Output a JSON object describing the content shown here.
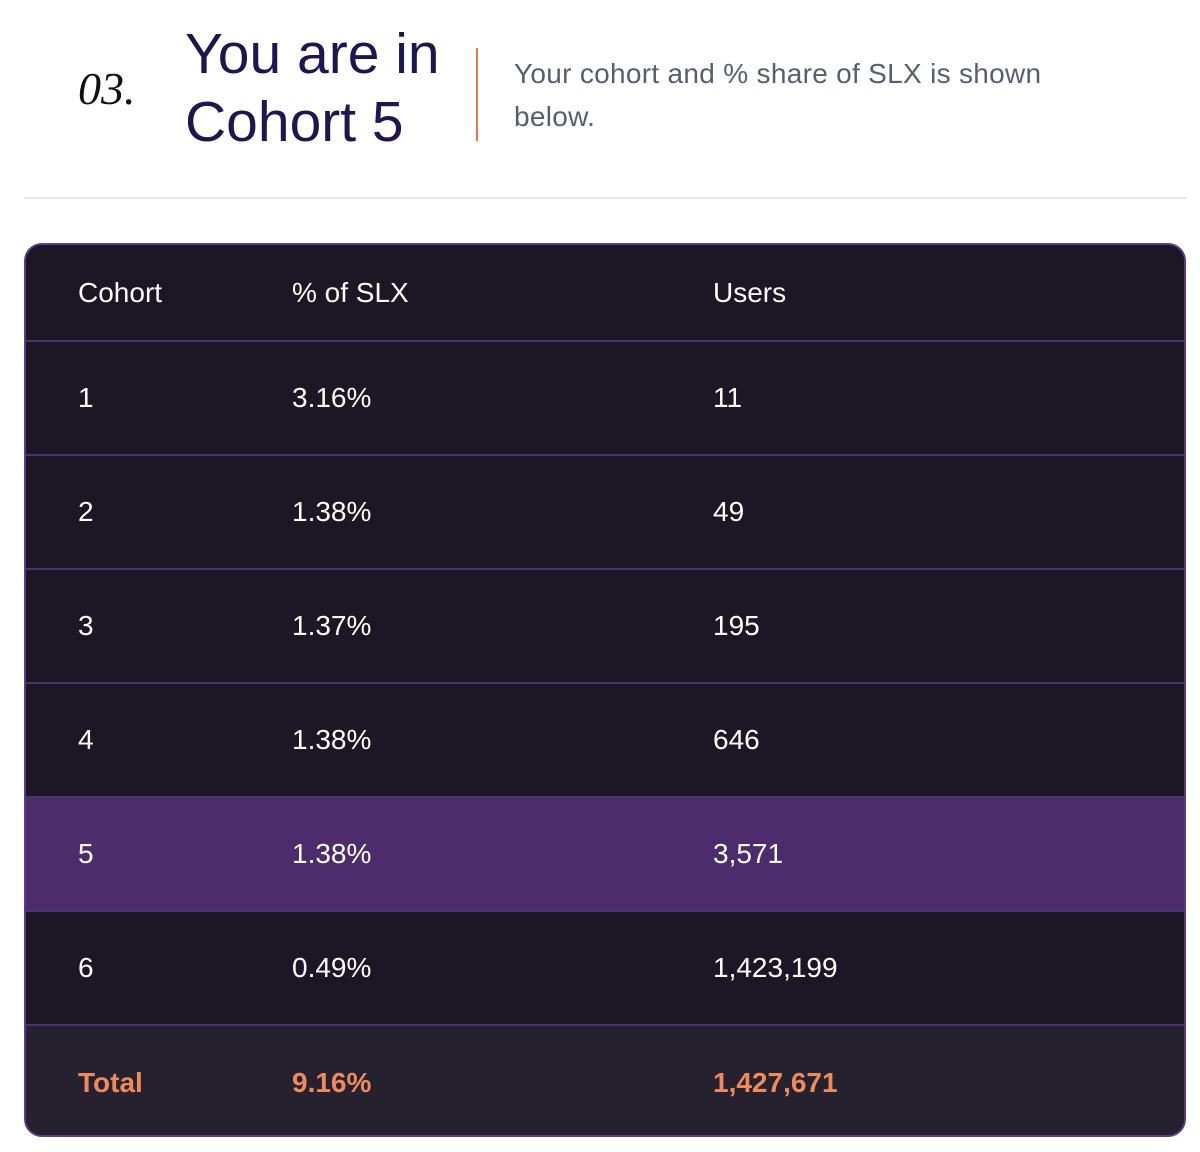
{
  "header": {
    "number": "03.",
    "title": "You are in Cohort 5",
    "description": "Your cohort and % share of SLX is shown below."
  },
  "table": {
    "columns": [
      "Cohort",
      "% of SLX",
      "Users"
    ],
    "rows": [
      [
        "1",
        "3.16%",
        "11"
      ],
      [
        "2",
        "1.38%",
        "49"
      ],
      [
        "3",
        "1.37%",
        "195"
      ],
      [
        "4",
        "1.38%",
        "646"
      ],
      [
        "5",
        "1.38%",
        "3,571"
      ],
      [
        "6",
        "0.49%",
        "1,423,199"
      ]
    ],
    "total": [
      "Total",
      "9.16%",
      "1,427,671"
    ]
  }
}
